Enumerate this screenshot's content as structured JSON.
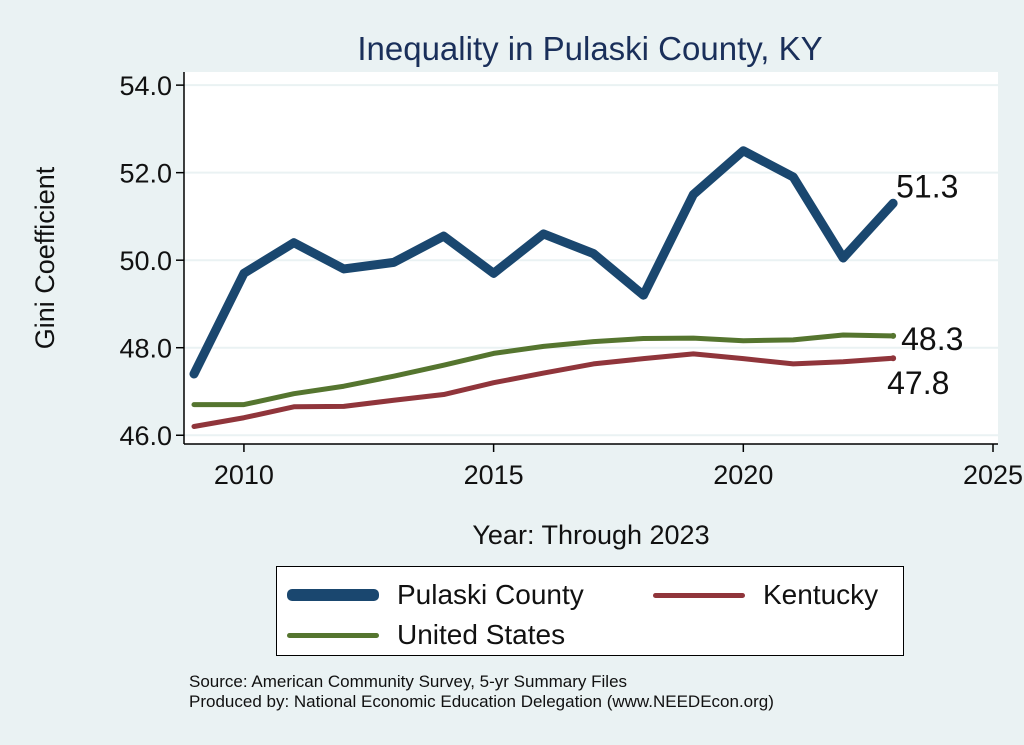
{
  "chart_data": {
    "type": "line",
    "title": "Inequality in Pulaski County, KY",
    "xlabel": "Year: Through 2023",
    "ylabel": "Gini Coefficient",
    "xlim": [
      2008.8,
      2025.1
    ],
    "ylim": [
      45.8,
      54.3
    ],
    "xticks": [
      2010,
      2015,
      2020,
      2025
    ],
    "yticks": [
      46,
      48,
      50,
      52,
      54
    ],
    "ytick_labels": [
      "46.0",
      "48.0",
      "50.0",
      "52.0",
      "54.0"
    ],
    "grid": true,
    "x": [
      2009,
      2010,
      2011,
      2012,
      2013,
      2014,
      2015,
      2016,
      2017,
      2018,
      2019,
      2020,
      2021,
      2022,
      2023
    ],
    "series": [
      {
        "name": "Pulaski County",
        "color": "#1a476f",
        "values": [
          47.4,
          49.7,
          50.4,
          49.8,
          49.95,
          50.55,
          49.7,
          50.6,
          50.15,
          49.2,
          51.5,
          52.5,
          51.9,
          50.05,
          51.3
        ],
        "end_label": "51.3"
      },
      {
        "name": "United States",
        "color": "#55752f",
        "values": [
          46.7,
          46.7,
          46.95,
          47.12,
          47.35,
          47.6,
          47.87,
          48.03,
          48.14,
          48.21,
          48.22,
          48.16,
          48.18,
          48.29,
          48.27
        ],
        "end_label": "48.3"
      },
      {
        "name": "Kentucky",
        "color": "#90353b",
        "values": [
          46.2,
          46.4,
          46.65,
          46.66,
          46.8,
          46.93,
          47.2,
          47.42,
          47.63,
          47.75,
          47.86,
          47.75,
          47.63,
          47.68,
          47.76
        ],
        "end_label": "47.8"
      }
    ],
    "legend": {
      "placement": "bottom",
      "entries": [
        "Pulaski County",
        "Kentucky",
        "United States"
      ]
    }
  },
  "footer": {
    "source": "Source: American Community Survey, 5-yr Summary Files",
    "produced": "Produced by: National Economic Education Delegation (www.NEEDEcon.org)"
  }
}
